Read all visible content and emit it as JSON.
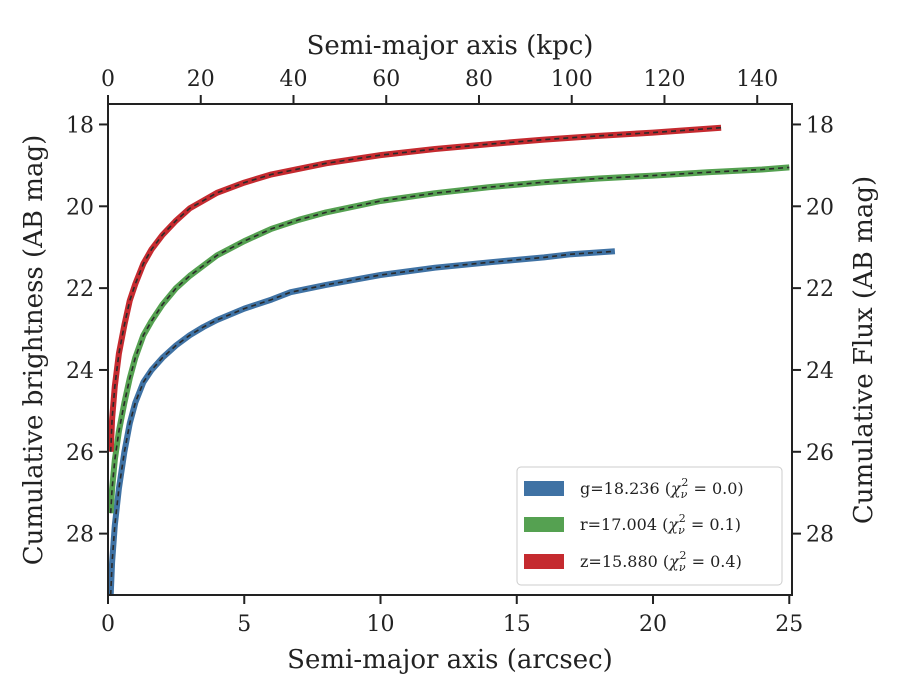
{
  "chart_data": {
    "type": "line",
    "xlabel": "Semi-major axis (arcsec)",
    "ylabel": "Cumulative brightness (AB mag)",
    "xlabel_top": "Semi-major axis (kpc)",
    "ylabel_right": "Cumulative Flux (AB mag)",
    "xlim": [
      0,
      25.1
    ],
    "ylim": [
      29.5,
      17.5
    ],
    "y_inverted": true,
    "xlim_top": [
      0,
      147.5
    ],
    "xticks": [
      0,
      5,
      10,
      15,
      20,
      25
    ],
    "xticks_top": [
      0,
      20,
      40,
      60,
      80,
      100,
      120,
      140
    ],
    "yticks": [
      18,
      20,
      22,
      24,
      26,
      28
    ],
    "grid": false,
    "legend_position": "lower-right",
    "series": [
      {
        "name": "g=18.236 (χ²ν = 0.0)",
        "legend": {
          "main": "g=18.236 (",
          "chi": "χ",
          "nu": "ν",
          "sq": "2",
          "eq": " = 0.0)"
        },
        "color": "#3f72a4",
        "x": [
          0.1,
          0.15,
          0.25,
          0.4,
          0.6,
          0.8,
          1.0,
          1.3,
          1.6,
          2.0,
          2.5,
          3.0,
          3.5,
          4.0,
          5.0,
          6.0,
          6.7,
          8.0,
          10.0,
          12.0,
          14.0,
          16.0,
          17.0,
          18.6
        ],
        "y": [
          29.5,
          28.7,
          27.8,
          26.9,
          26.0,
          25.3,
          24.8,
          24.3,
          24.0,
          23.7,
          23.4,
          23.15,
          22.95,
          22.78,
          22.5,
          22.28,
          22.1,
          21.92,
          21.68,
          21.5,
          21.37,
          21.25,
          21.17,
          21.1
        ]
      },
      {
        "name": "r=17.004 (χ²ν = 0.1)",
        "legend": {
          "main": "r=17.004 (",
          "chi": "χ",
          "nu": "ν",
          "sq": "2",
          "eq": " = 0.1)"
        },
        "color": "#55a151",
        "x": [
          0.1,
          0.15,
          0.25,
          0.4,
          0.6,
          0.8,
          1.0,
          1.3,
          1.6,
          2.0,
          2.5,
          3.0,
          4.0,
          5.0,
          6.0,
          7.0,
          8.0,
          10.0,
          12.0,
          14.0,
          16.0,
          18.0,
          20.0,
          22.0,
          24.0,
          25.0
        ],
        "y": [
          27.5,
          26.9,
          26.2,
          25.5,
          24.8,
          24.2,
          23.7,
          23.15,
          22.8,
          22.4,
          22.0,
          21.7,
          21.2,
          20.85,
          20.55,
          20.33,
          20.15,
          19.87,
          19.68,
          19.53,
          19.41,
          19.32,
          19.25,
          19.17,
          19.1,
          19.05
        ]
      },
      {
        "name": "z=15.880 (χ²ν = 0.4)",
        "legend": {
          "main": "z=15.880 (",
          "chi": "χ",
          "nu": "ν",
          "sq": "2",
          "eq": " = 0.4)"
        },
        "color": "#c52a2f",
        "x": [
          0.1,
          0.15,
          0.25,
          0.4,
          0.6,
          0.8,
          1.0,
          1.3,
          1.6,
          2.0,
          2.5,
          3.0,
          4.0,
          5.0,
          6.0,
          8.0,
          10.0,
          12.0,
          14.0,
          16.0,
          18.0,
          20.0,
          22.5
        ],
        "y": [
          26.0,
          25.2,
          24.4,
          23.6,
          22.9,
          22.3,
          21.9,
          21.4,
          21.05,
          20.7,
          20.35,
          20.05,
          19.67,
          19.42,
          19.22,
          18.95,
          18.75,
          18.6,
          18.48,
          18.37,
          18.28,
          18.2,
          18.08
        ]
      }
    ]
  }
}
